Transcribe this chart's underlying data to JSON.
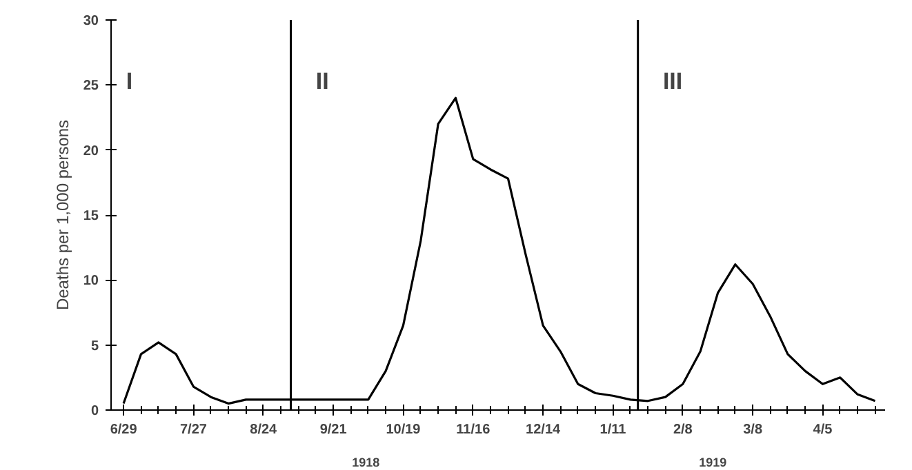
{
  "chart_data": {
    "type": "line",
    "ylabel": "Deaths per 1,000 persons",
    "x": [
      "1918-06-29",
      "1918-07-06",
      "1918-07-13",
      "1918-07-20",
      "1918-07-27",
      "1918-08-03",
      "1918-08-10",
      "1918-08-17",
      "1918-08-24",
      "1918-08-31",
      "1918-09-07",
      "1918-09-14",
      "1918-09-21",
      "1918-09-28",
      "1918-10-05",
      "1918-10-12",
      "1918-10-19",
      "1918-10-26",
      "1918-11-02",
      "1918-11-09",
      "1918-11-16",
      "1918-11-23",
      "1918-11-30",
      "1918-12-07",
      "1918-12-14",
      "1918-12-21",
      "1918-12-28",
      "1919-01-04",
      "1919-01-11",
      "1919-01-18",
      "1919-01-25",
      "1919-02-01",
      "1919-02-08",
      "1919-02-15",
      "1919-02-22",
      "1919-03-01",
      "1919-03-08",
      "1919-03-15",
      "1919-03-22",
      "1919-03-29",
      "1919-04-05",
      "1919-04-12",
      "1919-04-19",
      "1919-04-26"
    ],
    "series": [
      {
        "color": "#000000",
        "values": [
          0.5,
          4.3,
          5.2,
          4.3,
          1.8,
          1.0,
          0.5,
          0.8,
          0.8,
          0.8,
          0.8,
          0.8,
          0.8,
          0.8,
          0.8,
          3,
          6.5,
          13,
          22,
          24,
          19.3,
          18.5,
          17.8,
          12,
          6.5,
          4.5,
          2,
          1.3,
          1.1,
          0.8,
          0.7,
          1.0,
          2,
          4.5,
          9,
          11.2,
          9.7,
          7.2,
          4.3,
          3,
          2,
          2.5,
          1.2,
          0.7
        ]
      }
    ],
    "xlim": [
      "1918-06-24",
      "1919-04-30"
    ],
    "xticks": [
      {
        "value": "1918-06-29",
        "label": "6/29"
      },
      {
        "value": "1918-07-27",
        "label": "7/27"
      },
      {
        "value": "1918-08-24",
        "label": "8/24"
      },
      {
        "value": "1918-09-21",
        "label": "9/21"
      },
      {
        "value": "1918-10-19",
        "label": "10/19"
      },
      {
        "value": "1918-11-16",
        "label": "11/16"
      },
      {
        "value": "1918-12-14",
        "label": "12/14"
      },
      {
        "value": "1919-01-11",
        "label": "1/11"
      },
      {
        "value": "1919-02-08",
        "label": "2/8"
      },
      {
        "value": "1919-03-08",
        "label": "3/8"
      },
      {
        "value": "1919-04-05",
        "label": "4/5"
      }
    ],
    "ylim": [
      0,
      30
    ],
    "yticks": [
      0,
      5,
      10,
      15,
      20,
      25,
      30
    ],
    "ref_lines": [
      {
        "axis": "x",
        "value": "1918-09-04",
        "label": "II",
        "color": "#000000"
      },
      {
        "axis": "x",
        "value": "1919-01-21",
        "label": "III",
        "color": "#000000"
      }
    ],
    "annotations": [
      "I",
      "1918",
      "1919"
    ],
    "grid": false,
    "marker": "none",
    "line_style": "solid"
  }
}
